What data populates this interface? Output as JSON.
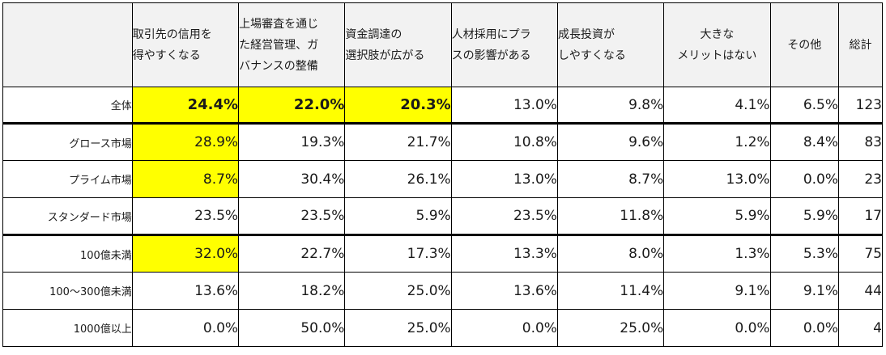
{
  "table": {
    "headers": [
      "",
      "取引先の信用を\n得やすくなる",
      "上場審査を通じ\nた経営管理、ガ\nバナンスの整備",
      "資金調達の\n選択肢が広がる",
      "人材採用にプラ\nスの影響がある",
      "成長投資が\nしやすくなる",
      "大きな\nメリットはない",
      "その他",
      "総計"
    ],
    "rows": [
      {
        "label": "全体",
        "cells": [
          "24.4%",
          "22.0%",
          "20.3%",
          "13.0%",
          "9.8%",
          "4.1%",
          "6.5%",
          "123"
        ]
      },
      {
        "label": "グロース市場",
        "cells": [
          "28.9%",
          "19.3%",
          "21.7%",
          "10.8%",
          "9.6%",
          "1.2%",
          "8.4%",
          "83"
        ]
      },
      {
        "label": "プライム市場",
        "cells": [
          "8.7%",
          "30.4%",
          "26.1%",
          "13.0%",
          "8.7%",
          "13.0%",
          "0.0%",
          "23"
        ]
      },
      {
        "label": "スタンダード市場",
        "cells": [
          "23.5%",
          "23.5%",
          "5.9%",
          "23.5%",
          "11.8%",
          "5.9%",
          "5.9%",
          "17"
        ]
      },
      {
        "label": "100億未満",
        "cells": [
          "32.0%",
          "22.7%",
          "17.3%",
          "13.3%",
          "8.0%",
          "1.3%",
          "5.3%",
          "75"
        ]
      },
      {
        "label": "100～300億未満",
        "cells": [
          "13.6%",
          "18.2%",
          "25.0%",
          "13.6%",
          "11.4%",
          "9.1%",
          "9.1%",
          "44"
        ]
      },
      {
        "label": "1000億以上",
        "cells": [
          "0.0%",
          "50.0%",
          "25.0%",
          "0.0%",
          "25.0%",
          "0.0%",
          "0.0%",
          "4"
        ]
      }
    ]
  },
  "colors": {
    "highlight": "#ffff00",
    "header_bg": "#f2f2f2"
  }
}
